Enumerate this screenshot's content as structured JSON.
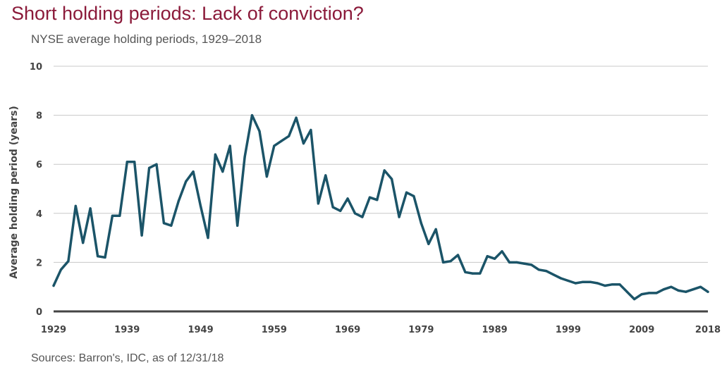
{
  "chart_data": {
    "type": "line",
    "title": "Short holding periods: Lack of conviction?",
    "subtitle": "NYSE average holding periods, 1929–2018",
    "ylabel": "Average holding period (years)",
    "xlabel": "",
    "source": "Sources: Barron's, IDC, as of 12/31/18",
    "ylim": [
      0,
      10
    ],
    "xlim": [
      1929,
      2018
    ],
    "yticks": [
      0,
      2,
      4,
      6,
      8,
      10
    ],
    "xticks": [
      1929,
      1939,
      1949,
      1959,
      1969,
      1979,
      1989,
      1999,
      2009,
      2018
    ],
    "grid": true,
    "color": "#1b5468",
    "series": [
      {
        "x": [
          1929,
          1930,
          1931,
          1932,
          1933,
          1934,
          1935,
          1936,
          1937,
          1938,
          1939,
          1940,
          1941,
          1942,
          1943,
          1944,
          1945,
          1946,
          1947,
          1948,
          1949,
          1950,
          1951,
          1952,
          1953,
          1954,
          1955,
          1956,
          1957,
          1958,
          1959,
          1960,
          1961,
          1962,
          1963,
          1964,
          1965,
          1966,
          1967,
          1968,
          1969,
          1970,
          1971,
          1972,
          1973,
          1974,
          1975,
          1976,
          1977,
          1978,
          1979,
          1980,
          1981,
          1982,
          1983,
          1984,
          1985,
          1986,
          1987,
          1988,
          1989,
          1990,
          1991,
          1992,
          1993,
          1994,
          1995,
          1996,
          1997,
          1998,
          1999,
          2000,
          2001,
          2002,
          2003,
          2004,
          2005,
          2006,
          2007,
          2008,
          2009,
          2010,
          2011,
          2012,
          2013,
          2014,
          2015,
          2016,
          2017,
          2018
        ],
        "values": [
          1.05,
          1.7,
          2.05,
          4.3,
          2.8,
          4.2,
          2.25,
          2.2,
          3.9,
          3.9,
          6.1,
          6.1,
          3.1,
          5.85,
          6.0,
          3.6,
          3.5,
          4.5,
          5.3,
          5.7,
          4.3,
          3.0,
          6.4,
          5.7,
          6.75,
          3.5,
          6.3,
          8.0,
          7.35,
          5.5,
          6.75,
          6.95,
          7.15,
          7.9,
          6.85,
          7.4,
          4.4,
          5.55,
          4.25,
          4.1,
          4.6,
          4.0,
          3.85,
          4.65,
          4.55,
          5.75,
          5.4,
          3.85,
          4.85,
          4.7,
          3.6,
          2.75,
          3.35,
          2.0,
          2.05,
          2.3,
          1.6,
          1.55,
          1.55,
          2.25,
          2.15,
          2.45,
          2.0,
          2.0,
          1.95,
          1.9,
          1.7,
          1.65,
          1.5,
          1.35,
          1.25,
          1.15,
          1.2,
          1.2,
          1.15,
          1.05,
          1.1,
          1.1,
          0.8,
          0.5,
          0.7,
          0.75,
          0.75,
          0.9,
          1.0,
          0.85,
          0.8,
          0.9,
          1.0,
          0.8
        ]
      }
    ]
  }
}
